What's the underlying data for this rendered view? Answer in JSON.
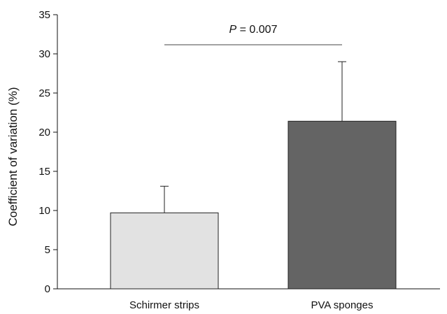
{
  "chart_data": {
    "type": "bar",
    "categories": [
      "Schirmer strips",
      "PVA sponges"
    ],
    "values": [
      9.7,
      21.4
    ],
    "error_upper": [
      13.1,
      29.0
    ],
    "bar_colors": [
      "#e2e2e2",
      "#646464"
    ],
    "ylabel": "Coefficient of variation (%)",
    "xlabel": "",
    "ylim": [
      0,
      35
    ],
    "yticks": [
      0,
      5,
      10,
      15,
      20,
      25,
      30,
      35
    ],
    "grid": false,
    "significance": {
      "p_label": "P",
      "p_value_text": " = 0.007",
      "between": [
        0,
        1
      ]
    }
  }
}
